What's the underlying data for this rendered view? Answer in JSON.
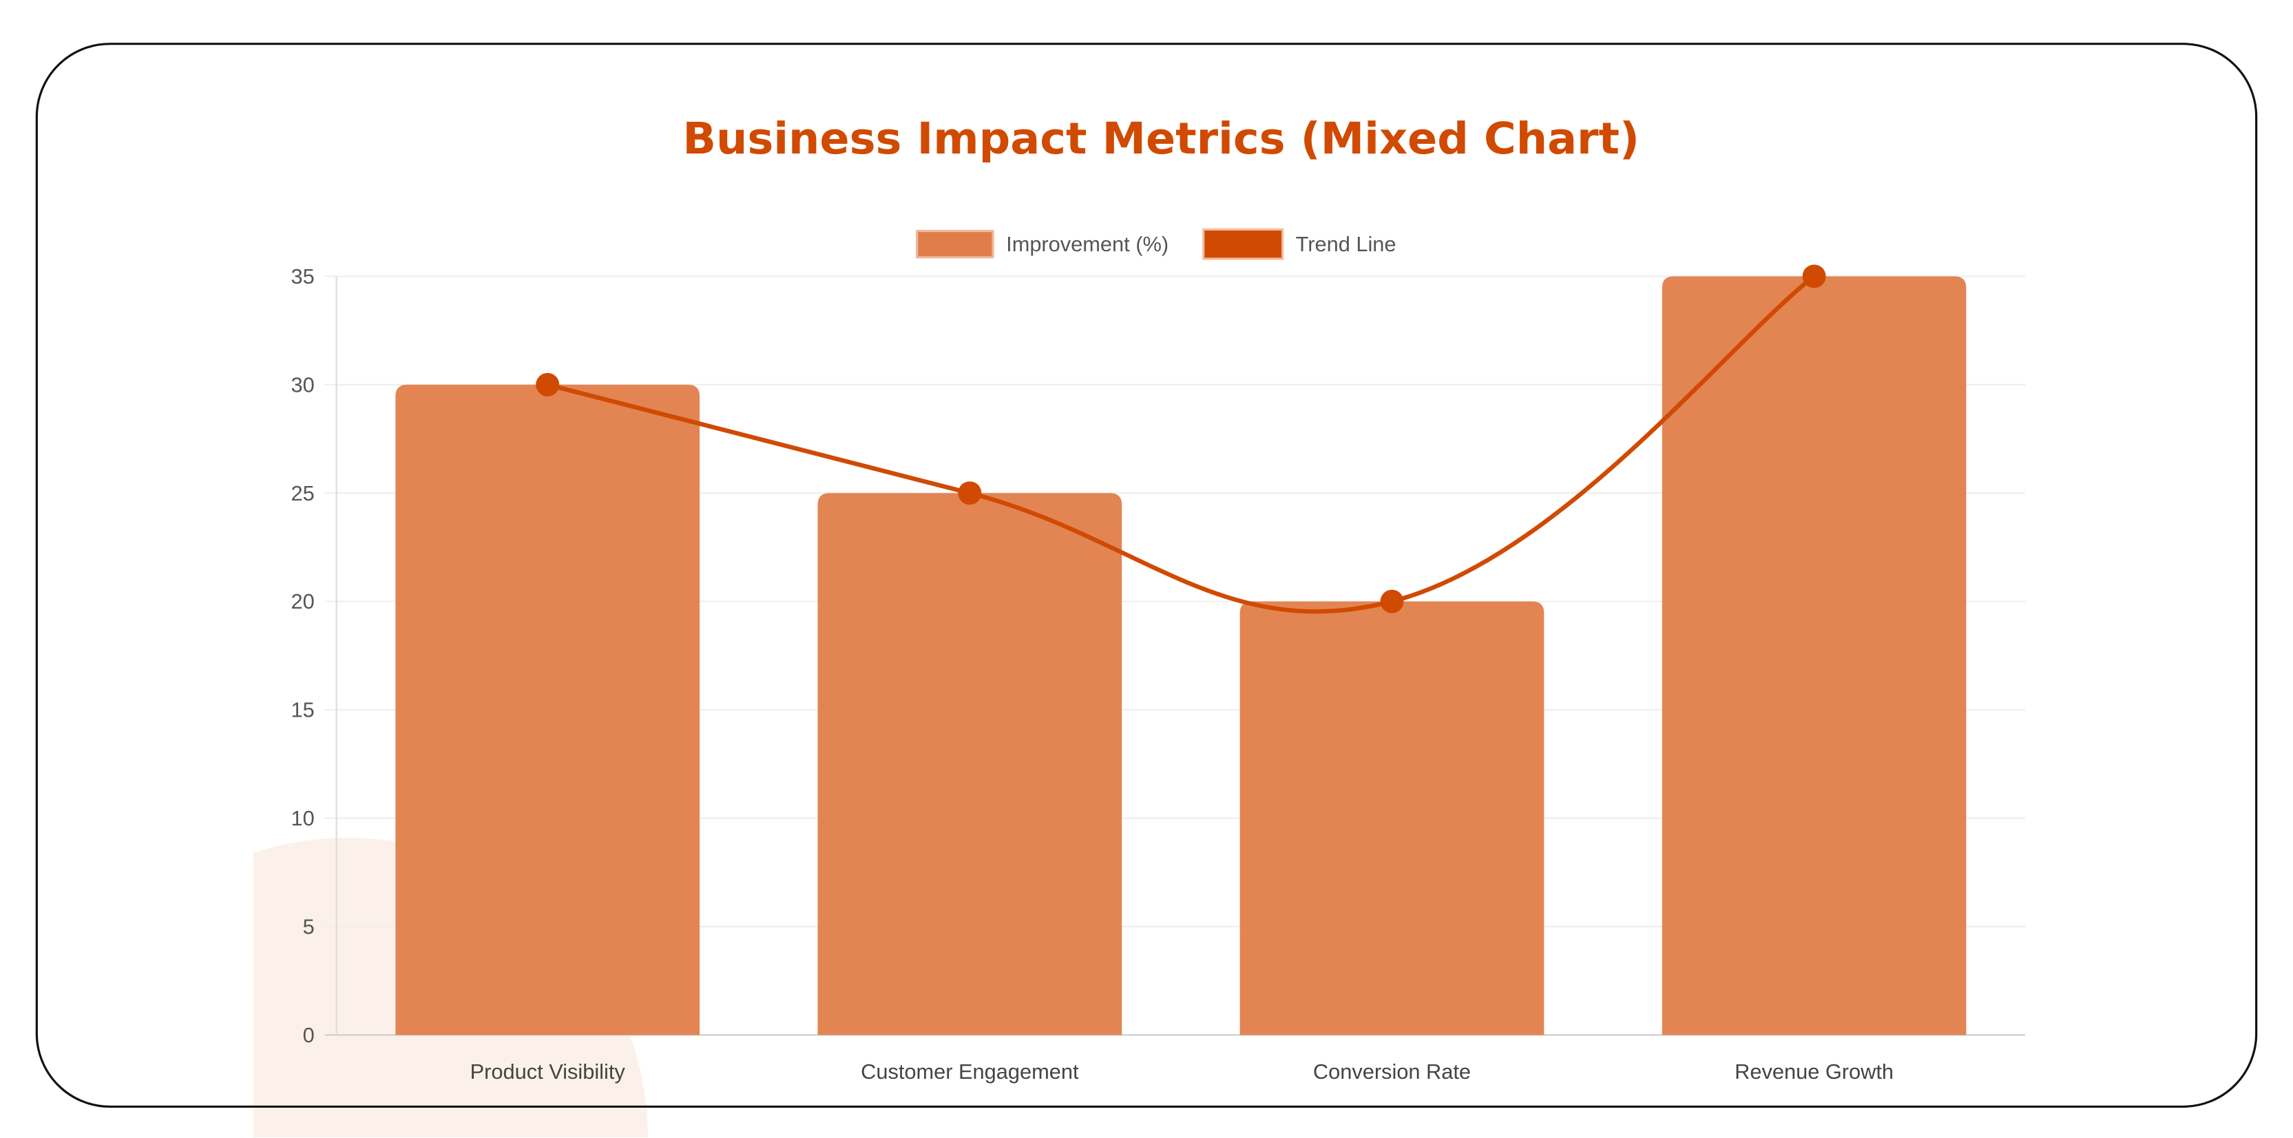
{
  "chart_data": {
    "type": "bar",
    "title": "Business Impact Metrics (Mixed Chart)",
    "categories": [
      "Product Visibility",
      "Customer Engagement",
      "Conversion Rate",
      "Revenue Growth"
    ],
    "series": [
      {
        "name": "Improvement (%)",
        "type": "bar",
        "values": [
          30,
          25,
          20,
          35
        ],
        "color": "#E07E4A"
      },
      {
        "name": "Trend Line",
        "type": "line",
        "values": [
          30,
          25,
          20,
          35
        ],
        "color": "#D04A02",
        "smooth": true
      }
    ],
    "yticks": [
      0,
      5,
      10,
      15,
      20,
      25,
      30,
      35
    ],
    "ylim": [
      0,
      35
    ],
    "grid": true,
    "legend": "top",
    "title_color": "#D04A02"
  }
}
